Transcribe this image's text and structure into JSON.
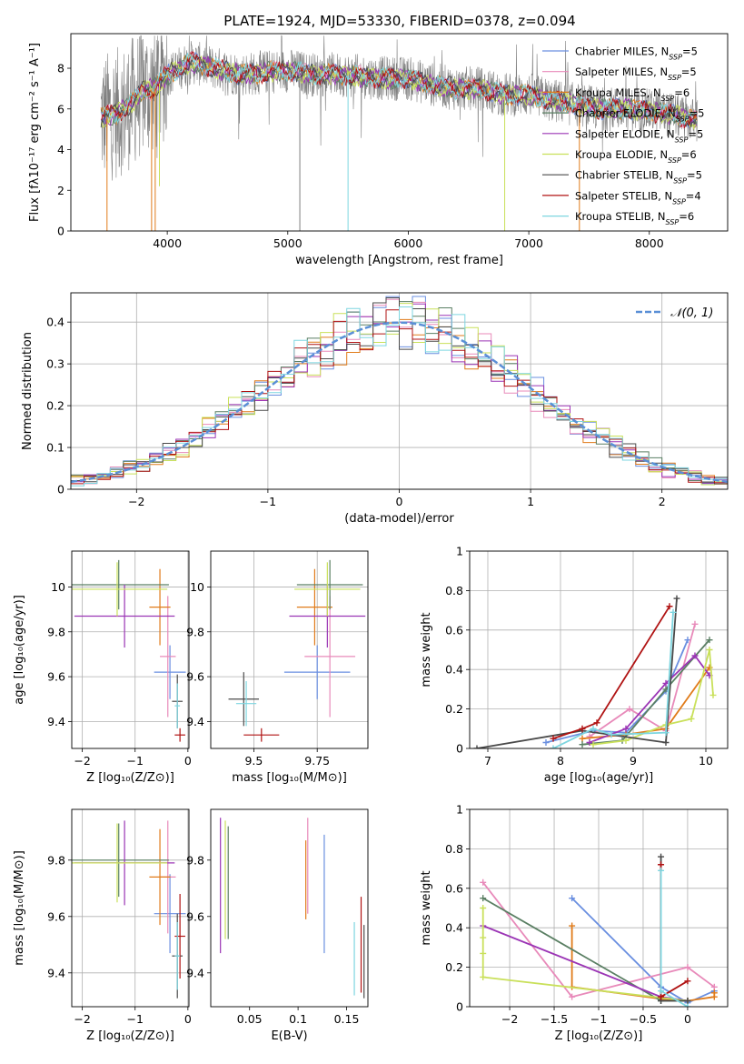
{
  "figure": {
    "title": "PLATE=1924, MJD=53330, FIBERID=0378, z=0.094"
  },
  "colors": {
    "Chabrier MILES": "#6a8fe0",
    "Salpeter MILES": "#e88aba",
    "Kroupa MILES": "#e07b1a",
    "Chabrier ELODIE": "#5a7f63",
    "Salpeter ELODIE": "#9b35b5",
    "Kroupa ELODIE": "#c9e05a",
    "Chabrier STELIB": "#4a4a4a",
    "Salpeter STELIB": "#b01313",
    "Kroupa STELIB": "#7ed6e0",
    "data": "#808080",
    "normal": "#5a8fd6"
  },
  "chart_data": [
    {
      "id": "spectrum",
      "type": "line",
      "xlabel": "wavelength [Angstrom, rest frame]",
      "ylabel": "Flux [fλ10⁻¹⁷ erg cm⁻² s⁻¹ A⁻¹]",
      "xlim": [
        3200,
        8650
      ],
      "ylim": [
        0,
        9.7
      ],
      "xticks": [
        4000,
        5000,
        6000,
        7000,
        8000
      ],
      "yticks": [
        0,
        2,
        4,
        6,
        8
      ],
      "grid": false,
      "legend": "top-right",
      "legend_entries": [
        {
          "model": "Chabrier MILES",
          "nssp": "5"
        },
        {
          "model": "Salpeter MILES",
          "nssp": "5"
        },
        {
          "model": "Kroupa MILES",
          "nssp": "6"
        },
        {
          "model": "Chabrier ELODIE",
          "nssp": "5"
        },
        {
          "model": "Salpeter ELODIE",
          "nssp": "5"
        },
        {
          "model": "Kroupa ELODIE",
          "nssp": "6"
        },
        {
          "model": "Chabrier STELIB",
          "nssp": "5"
        },
        {
          "model": "Salpeter STELIB",
          "nssp": "4"
        },
        {
          "model": "Kroupa STELIB",
          "nssp": "6"
        }
      ],
      "continuum": {
        "x": [
          3450,
          3550,
          3650,
          3800,
          3900,
          4000,
          4100,
          4200,
          4400,
          4600,
          4800,
          5000,
          5200,
          5400,
          5600,
          5800,
          6000,
          6200,
          6400,
          6600,
          6800,
          7000,
          7200,
          7400,
          7600,
          7800,
          8000,
          8200,
          8400
        ],
        "y": [
          5.6,
          5.7,
          6.0,
          6.9,
          7.0,
          7.7,
          8.0,
          8.3,
          8.0,
          7.7,
          7.8,
          7.9,
          7.7,
          7.7,
          7.6,
          7.5,
          7.5,
          7.2,
          7.0,
          7.0,
          6.7,
          6.7,
          6.4,
          6.2,
          6.0,
          6.0,
          5.9,
          5.7,
          5.4
        ]
      },
      "absorption_dips": [
        {
          "x": 3500,
          "y": 0.0
        },
        {
          "x": 3870,
          "y": 0.0
        },
        {
          "x": 3900,
          "y": 0.0
        },
        {
          "x": 3935,
          "y": 2.2
        },
        {
          "x": 5100,
          "y": 0.0
        },
        {
          "x": 5500,
          "y": 0.0
        },
        {
          "x": 6800,
          "y": 0.0
        },
        {
          "x": 7420,
          "y": 0.0
        }
      ]
    },
    {
      "id": "residuals",
      "type": "histogram",
      "xlabel": "(data-model)/error",
      "ylabel": "Normed distribution",
      "xlim": [
        -2.5,
        2.5
      ],
      "ylim": [
        0,
        0.47
      ],
      "xticks": [
        -2,
        -1,
        0,
        1,
        2
      ],
      "yticks": [
        0.0,
        0.1,
        0.2,
        0.3,
        0.4
      ],
      "grid": true,
      "legend": "top-right",
      "normal_label": "𝒩(0, 1)",
      "bin_width": 0.1
    },
    {
      "id": "age-vs-Z",
      "type": "errorbar",
      "xlabel": "Z [log₁₀(Z/Z⊙)]",
      "ylabel": "age  [log₁₀(age/yr)]",
      "xlim": [
        -2.2,
        0.02
      ],
      "ylim": [
        9.28,
        10.16
      ],
      "xticks": [
        -2,
        -1,
        0
      ],
      "yticks": [
        9.4,
        9.6,
        9.8,
        10.0
      ],
      "grid": true,
      "points": [
        {
          "model": "Chabrier MILES",
          "x": -0.34,
          "xerr": 0.3,
          "y": 9.62,
          "yerr": 0.12
        },
        {
          "model": "Salpeter MILES",
          "x": -0.38,
          "xerr": 0.15,
          "y": 9.69,
          "yerr": 0.27
        },
        {
          "model": "Kroupa MILES",
          "x": -0.53,
          "xerr": 0.2,
          "y": 9.91,
          "yerr": 0.17
        },
        {
          "model": "Chabrier ELODIE",
          "x": -1.31,
          "xerr": 0.95,
          "y": 10.01,
          "yerr": 0.11
        },
        {
          "model": "Salpeter ELODIE",
          "x": -1.2,
          "xerr": 0.95,
          "y": 9.87,
          "yerr": 0.14
        },
        {
          "model": "Kroupa ELODIE",
          "x": -1.34,
          "xerr": 0.95,
          "y": 9.99,
          "yerr": 0.12
        },
        {
          "model": "Chabrier STELIB",
          "x": -0.2,
          "xerr": 0.1,
          "y": 9.49,
          "yerr": 0.12
        },
        {
          "model": "Salpeter STELIB",
          "x": -0.15,
          "xerr": 0.1,
          "y": 9.34,
          "yerr": 0.03
        },
        {
          "model": "Kroupa STELIB",
          "x": -0.2,
          "xerr": 0.05,
          "y": 9.47,
          "yerr": 0.1
        }
      ]
    },
    {
      "id": "age-vs-mass",
      "type": "errorbar",
      "xlabel": "mass [log₁₀(M/M⊙)]",
      "ylabel": "",
      "xlim": [
        9.33,
        9.95
      ],
      "ylim": [
        9.28,
        10.16
      ],
      "xticks": [
        9.5,
        9.75
      ],
      "yticks": [
        9.4,
        9.6,
        9.8,
        10.0
      ],
      "grid": true,
      "points": [
        {
          "model": "Chabrier MILES",
          "x": 9.75,
          "xerr": 0.13,
          "y": 9.62,
          "yerr": 0.12
        },
        {
          "model": "Salpeter MILES",
          "x": 9.8,
          "xerr": 0.1,
          "y": 9.69,
          "yerr": 0.27
        },
        {
          "model": "Kroupa MILES",
          "x": 9.74,
          "xerr": 0.07,
          "y": 9.91,
          "yerr": 0.17
        },
        {
          "model": "Chabrier ELODIE",
          "x": 9.8,
          "xerr": 0.13,
          "y": 10.01,
          "yerr": 0.11
        },
        {
          "model": "Salpeter ELODIE",
          "x": 9.79,
          "xerr": 0.15,
          "y": 9.87,
          "yerr": 0.14
        },
        {
          "model": "Kroupa ELODIE",
          "x": 9.79,
          "xerr": 0.13,
          "y": 9.99,
          "yerr": 0.12
        },
        {
          "model": "Chabrier STELIB",
          "x": 9.46,
          "xerr": 0.06,
          "y": 9.5,
          "yerr": 0.12
        },
        {
          "model": "Salpeter STELIB",
          "x": 9.53,
          "xerr": 0.07,
          "y": 9.34,
          "yerr": 0.03
        },
        {
          "model": "Kroupa STELIB",
          "x": 9.47,
          "xerr": 0.04,
          "y": 9.48,
          "yerr": 0.1
        }
      ]
    },
    {
      "id": "mass-weight-vs-age",
      "type": "line",
      "xlabel": "age  [log₁₀(age/yr)]",
      "ylabel": "mass weight",
      "xlim": [
        6.75,
        10.3
      ],
      "ylim": [
        0.0,
        1.0
      ],
      "xticks": [
        7,
        8,
        9,
        10
      ],
      "yticks": [
        0.0,
        0.2,
        0.4,
        0.6,
        0.8,
        1.0
      ],
      "grid": true,
      "series": [
        {
          "model": "Chabrier MILES",
          "x": [
            7.8,
            8.45,
            8.9,
            9.45,
            9.75
          ],
          "y": [
            0.03,
            0.09,
            0.08,
            0.29,
            0.55
          ]
        },
        {
          "model": "Salpeter MILES",
          "x": [
            8.4,
            8.95,
            9.45,
            9.85
          ],
          "y": [
            0.06,
            0.2,
            0.09,
            0.63
          ]
        },
        {
          "model": "Kroupa MILES",
          "x": [
            8.3,
            8.9,
            9.45,
            10.05
          ],
          "y": [
            0.05,
            0.07,
            0.1,
            0.41
          ]
        },
        {
          "model": "Chabrier ELODIE",
          "x": [
            8.3,
            8.85,
            9.45,
            10.05
          ],
          "y": [
            0.02,
            0.04,
            0.3,
            0.55
          ]
        },
        {
          "model": "Salpeter ELODIE",
          "x": [
            8.4,
            8.9,
            9.45,
            9.85,
            10.05
          ],
          "y": [
            0.03,
            0.1,
            0.33,
            0.47,
            0.37
          ]
        },
        {
          "model": "Kroupa ELODIE",
          "x": [
            8.45,
            8.9,
            9.45,
            9.8,
            10.05,
            10.1
          ],
          "y": [
            0.02,
            0.04,
            0.12,
            0.15,
            0.5,
            0.27
          ]
        },
        {
          "model": "Chabrier STELIB",
          "x": [
            6.85,
            8.3,
            9.45,
            9.6
          ],
          "y": [
            0.0,
            0.09,
            0.03,
            0.76
          ]
        },
        {
          "model": "Salpeter STELIB",
          "x": [
            7.9,
            8.3,
            8.5,
            9.5
          ],
          "y": [
            0.05,
            0.1,
            0.13,
            0.72
          ]
        },
        {
          "model": "Kroupa STELIB",
          "x": [
            7.9,
            8.45,
            8.7,
            9.45,
            9.55
          ],
          "y": [
            0.0,
            0.1,
            0.07,
            0.08,
            0.69
          ]
        }
      ]
    },
    {
      "id": "mass-vs-Z",
      "type": "errorbar",
      "xlabel": "Z [log₁₀(Z/Z⊙)]",
      "ylabel": "mass [log₁₀(M/M⊙)]",
      "xlim": [
        -2.2,
        0.02
      ],
      "ylim": [
        9.28,
        9.98
      ],
      "xticks": [
        -2,
        -1,
        0
      ],
      "yticks": [
        9.4,
        9.6,
        9.8
      ],
      "grid": true,
      "points": [
        {
          "model": "Chabrier MILES",
          "x": -0.34,
          "xerr": 0.3,
          "y": 9.61,
          "yerr": 0.14
        },
        {
          "model": "Salpeter MILES",
          "x": -0.38,
          "xerr": 0.15,
          "y": 9.74,
          "yerr": 0.2
        },
        {
          "model": "Kroupa MILES",
          "x": -0.53,
          "xerr": 0.2,
          "y": 9.74,
          "yerr": 0.17
        },
        {
          "model": "Chabrier ELODIE",
          "x": -1.31,
          "xerr": 0.95,
          "y": 9.8,
          "yerr": 0.13
        },
        {
          "model": "Salpeter ELODIE",
          "x": -1.2,
          "xerr": 0.95,
          "y": 9.79,
          "yerr": 0.15
        },
        {
          "model": "Kroupa ELODIE",
          "x": -1.34,
          "xerr": 0.95,
          "y": 9.79,
          "yerr": 0.14
        },
        {
          "model": "Chabrier STELIB",
          "x": -0.2,
          "xerr": 0.1,
          "y": 9.46,
          "yerr": 0.15
        },
        {
          "model": "Salpeter STELIB",
          "x": -0.15,
          "xerr": 0.1,
          "y": 9.53,
          "yerr": 0.15
        },
        {
          "model": "Kroupa STELIB",
          "x": -0.2,
          "xerr": 0.05,
          "y": 9.46,
          "yerr": 0.12
        }
      ]
    },
    {
      "id": "mass-vs-ebv",
      "type": "errorbar",
      "xlabel": "E(B-V)",
      "ylabel": "",
      "xlim": [
        0.01,
        0.172
      ],
      "ylim": [
        9.28,
        9.98
      ],
      "xticks": [
        0.05,
        0.1,
        0.15
      ],
      "yticks": [
        9.4,
        9.6,
        9.8
      ],
      "grid": false,
      "points": [
        {
          "model": "Chabrier MILES",
          "x": 0.127,
          "y": 9.68,
          "yerr": 0.21
        },
        {
          "model": "Salpeter MILES",
          "x": 0.11,
          "y": 9.78,
          "yerr": 0.17
        },
        {
          "model": "Kroupa MILES",
          "x": 0.108,
          "y": 9.73,
          "yerr": 0.14
        },
        {
          "model": "Chabrier ELODIE",
          "x": 0.028,
          "y": 9.72,
          "yerr": 0.2
        },
        {
          "model": "Salpeter ELODIE",
          "x": 0.02,
          "y": 9.71,
          "yerr": 0.24
        },
        {
          "model": "Kroupa ELODIE",
          "x": 0.025,
          "y": 9.73,
          "yerr": 0.21
        },
        {
          "model": "Chabrier STELIB",
          "x": 0.168,
          "y": 9.44,
          "yerr": 0.13
        },
        {
          "model": "Salpeter STELIB",
          "x": 0.165,
          "y": 9.5,
          "yerr": 0.17
        },
        {
          "model": "Kroupa STELIB",
          "x": 0.158,
          "y": 9.45,
          "yerr": 0.13
        }
      ]
    },
    {
      "id": "mass-weight-vs-Z",
      "type": "line",
      "xlabel": "Z [log₁₀(Z/Z⊙)]",
      "ylabel": "mass weight",
      "xlim": [
        -2.45,
        0.45
      ],
      "ylim": [
        0.0,
        1.0
      ],
      "xticks": [
        -2.0,
        -1.5,
        -1.0,
        -0.5,
        0.0
      ],
      "yticks": [
        0.0,
        0.2,
        0.4,
        0.6,
        0.8,
        1.0
      ],
      "grid": true,
      "series": [
        {
          "model": "Chabrier MILES",
          "x": [
            -1.3,
            -0.3,
            0.0,
            0.3
          ],
          "y": [
            0.55,
            0.1,
            0.02,
            0.08
          ]
        },
        {
          "model": "Salpeter MILES",
          "x": [
            -2.3,
            -1.3,
            0.0,
            0.3
          ],
          "y": [
            0.63,
            0.05,
            0.2,
            0.1
          ]
        },
        {
          "model": "Kroupa MILES",
          "x": [
            -1.3,
            -1.3,
            -0.3,
            0.0,
            0.3,
            0.3
          ],
          "y": [
            0.41,
            0.1,
            0.04,
            0.03,
            0.05,
            0.07
          ]
        },
        {
          "model": "Chabrier ELODIE",
          "x": [
            -2.3,
            -0.3,
            0.0
          ],
          "y": [
            0.55,
            0.03,
            0.03
          ]
        },
        {
          "model": "Salpeter ELODIE",
          "x": [
            -2.3,
            -0.3,
            0.0
          ],
          "y": [
            0.41,
            0.05,
            0.03
          ]
        },
        {
          "model": "Kroupa ELODIE",
          "x": [
            -2.3,
            -2.3,
            -2.3,
            -2.3,
            0.0
          ],
          "y": [
            0.5,
            0.35,
            0.27,
            0.15,
            0.03
          ]
        },
        {
          "model": "Chabrier STELIB",
          "x": [
            -0.3,
            -0.3,
            0.0
          ],
          "y": [
            0.76,
            0.03,
            0.03
          ]
        },
        {
          "model": "Salpeter STELIB",
          "x": [
            -0.3,
            -0.3,
            0.0
          ],
          "y": [
            0.72,
            0.05,
            0.13
          ]
        },
        {
          "model": "Kroupa STELIB",
          "x": [
            -0.3,
            -0.3,
            0.0
          ],
          "y": [
            0.69,
            0.08,
            0.0
          ]
        }
      ]
    }
  ]
}
